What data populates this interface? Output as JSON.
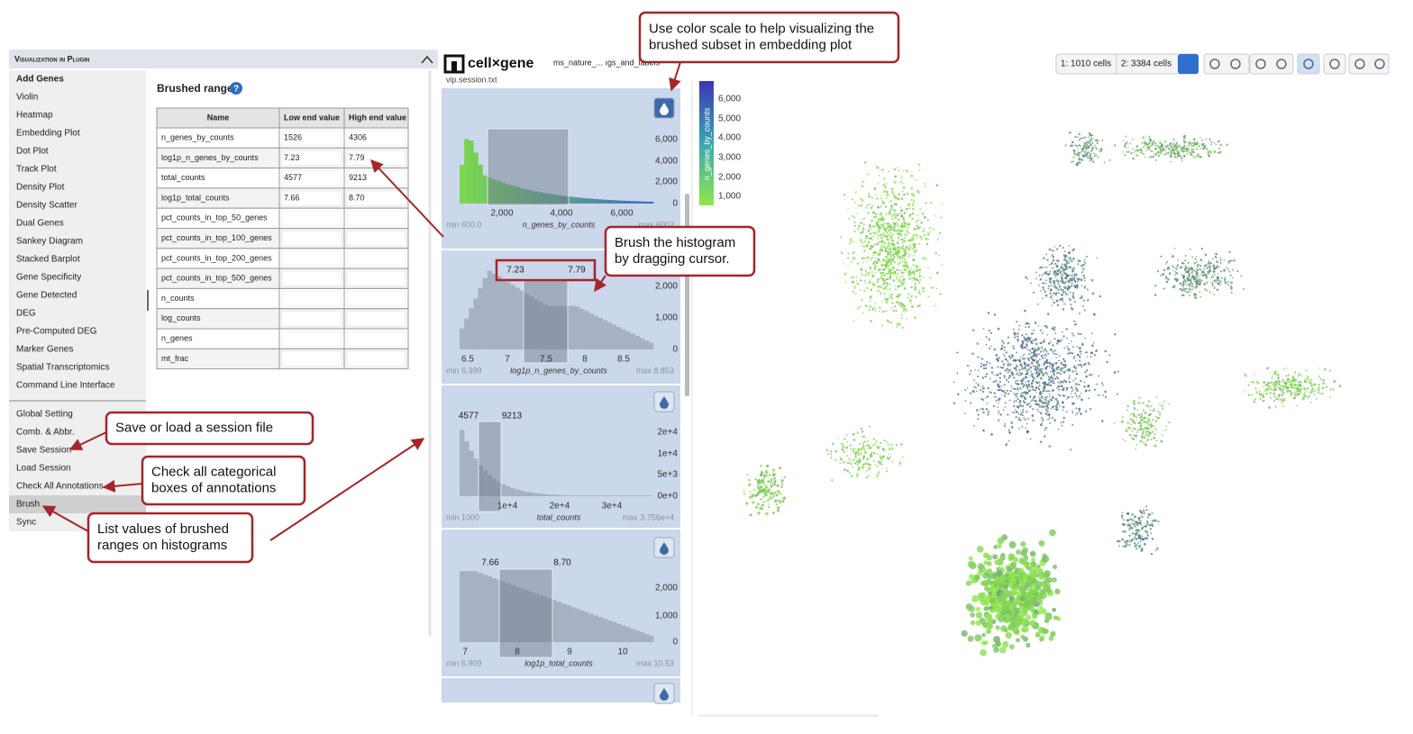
{
  "left_panel": {
    "title": "Visualization in Plugin",
    "menu": [
      "Add Genes",
      "Violin",
      "Heatmap",
      "Embedding Plot",
      "Dot Plot",
      "Track Plot",
      "Density Plot",
      "Density Scatter",
      "Dual Genes",
      "Sankey Diagram",
      "Stacked Barplot",
      "Gene Specificity",
      "Gene Detected",
      "DEG",
      "Pre-Computed DEG",
      "Marker Genes",
      "Spatial Transcriptomics",
      "Command Line Interface"
    ],
    "menu2": [
      "Global Setting",
      "Comb. & Abbr.",
      "Save Session",
      "Load Session",
      "Check All Annotations",
      "Brush",
      "Sync"
    ]
  },
  "brushed_ranges": {
    "title": "Brushed ranges",
    "columns": [
      "Name",
      "Low end value",
      "High end value"
    ],
    "rows": [
      [
        "n_genes_by_counts",
        "1526",
        "4306"
      ],
      [
        "log1p_n_genes_by_counts",
        "7.23",
        "7.79"
      ],
      [
        "total_counts",
        "4577",
        "9213"
      ],
      [
        "log1p_total_counts",
        "7.66",
        "8.70"
      ],
      [
        "pct_counts_in_top_50_genes"
      ],
      [
        "pct_counts_in_top_100_genes"
      ],
      [
        "pct_counts_in_top_200_genes"
      ],
      [
        "pct_counts_in_top_500_genes"
      ],
      [
        "n_counts"
      ],
      [
        "log_counts"
      ],
      [
        "n_genes"
      ],
      [
        "mt_frac"
      ]
    ]
  },
  "cellxgene": {
    "logo": "cell×gene",
    "dataset": "ms_nature_... ıgs_and_labels",
    "session": "vip.session.txt",
    "histograms": [
      {
        "label": "n_genes_by_counts",
        "yticks": [
          "6,000",
          "4,000",
          "2,000",
          "0"
        ],
        "xticks": [
          "2,000",
          "4,000",
          "6,000"
        ],
        "min": "min 600.0",
        "max": "max 6002"
      },
      {
        "label": "log1p_n_genes_by_counts",
        "yticks": [
          "2,000",
          "1,000",
          "0"
        ],
        "xticks": [
          "6.5",
          "7",
          "7.5",
          "8",
          "8.5"
        ],
        "min": "min 6.399",
        "max": "max 8.853",
        "brush": [
          "7.23",
          "7.79"
        ]
      },
      {
        "label": "total_counts",
        "yticks": [
          "2e+4",
          "1e+4",
          "5e+3",
          "0e+0"
        ],
        "xticks": [
          "1e+4",
          "2e+4",
          "3e+4"
        ],
        "min": "min 1000",
        "max": "max 3.756e+4",
        "brush": [
          "4577",
          "9213"
        ]
      },
      {
        "label": "log1p_total_counts",
        "yticks": [
          "2,000",
          "1,000",
          "0"
        ],
        "xticks": [
          "7",
          "8",
          "9",
          "10"
        ],
        "min": "min 6.909",
        "max": "max 10.53",
        "brush": [
          "7.66",
          "8.70"
        ]
      }
    ]
  },
  "colorbar": {
    "label": "n_genes_by_counts",
    "ticks": [
      "6,000",
      "5,000",
      "4,000",
      "3,000",
      "2,000",
      "1,000"
    ]
  },
  "toolbar": {
    "set1": "1: 1010 cells",
    "set2": "2: 3384 cells"
  },
  "annotations": [
    {
      "lines": [
        "Use color scale to help visualizing the",
        "brushed subset in embedding plot"
      ]
    },
    {
      "lines": [
        "Brush the histogram",
        "by dragging cursor."
      ]
    },
    {
      "lines": [
        "Save or load a session file"
      ]
    },
    {
      "lines": [
        "Check all categorical",
        "boxes of annotations"
      ]
    },
    {
      "lines": [
        "List values of brushed",
        "ranges on histograms"
      ]
    }
  ]
}
